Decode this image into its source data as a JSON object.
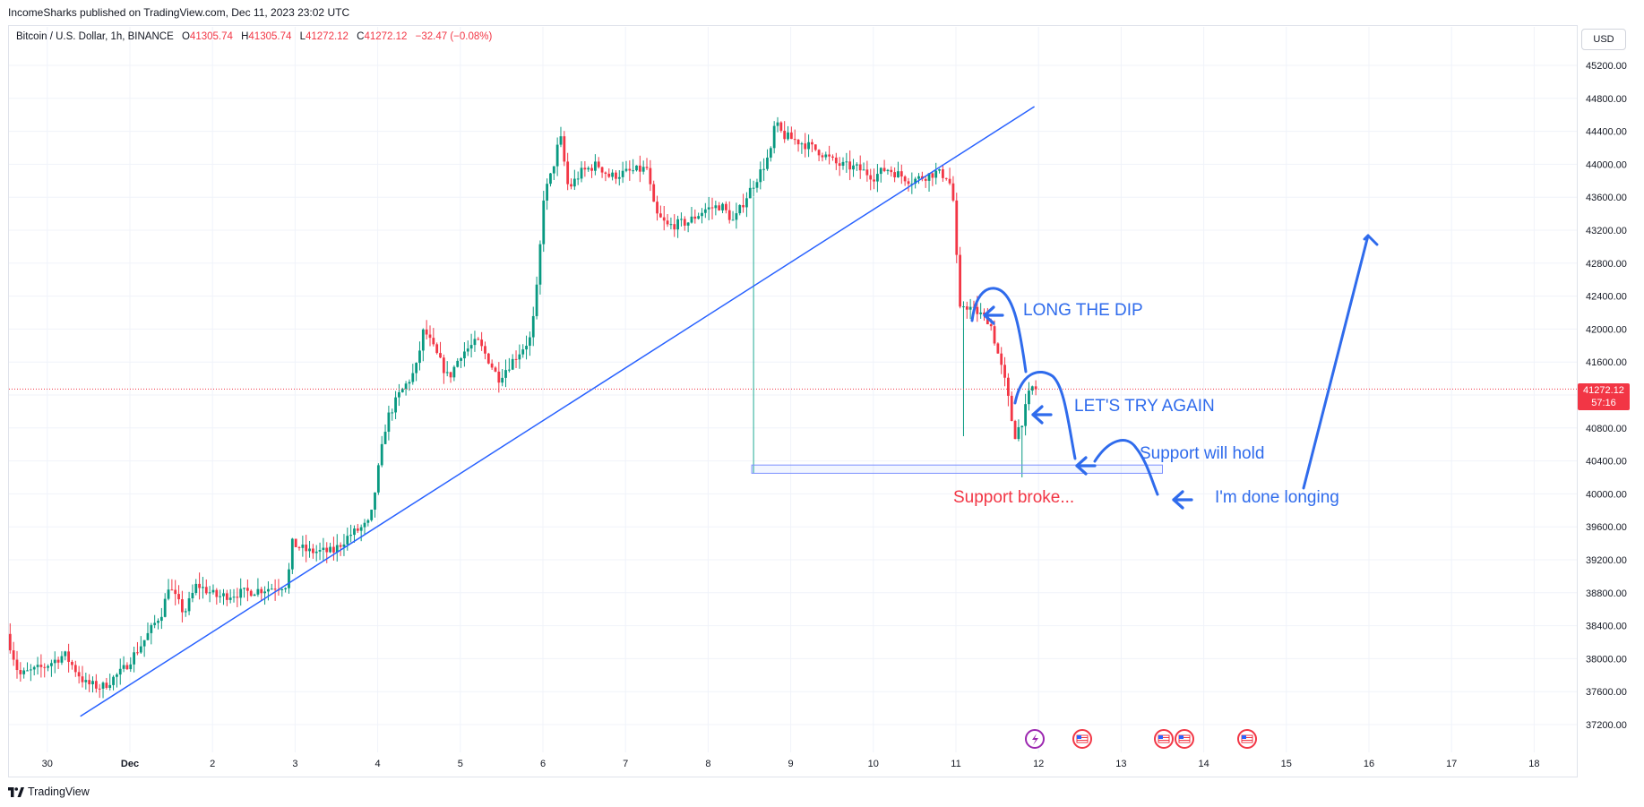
{
  "header": {
    "published": "IncomeSharks published on TradingView.com, Dec 11, 2023 23:02 UTC"
  },
  "legend": {
    "symbol": "Bitcoin / U.S. Dollar, 1h, BINANCE",
    "o_label": "O",
    "o_value": "41305.74",
    "h_label": "H",
    "h_value": "41305.74",
    "l_label": "L",
    "l_value": "41272.12",
    "c_label": "C",
    "c_value": "41272.12",
    "change": "−32.47 (−0.08%)"
  },
  "currency": "USD",
  "last_price": {
    "value": "41272.12",
    "countdown": "57:16"
  },
  "footer": {
    "brand": "TradingView"
  },
  "annotations": {
    "long_dip": "LONG THE DIP",
    "try_again": "LET'S TRY AGAIN",
    "support_hold": "Support will hold",
    "done_longing": "I'm done longing",
    "support_broke": "Support broke..."
  },
  "colors": {
    "up": "#089981",
    "down": "#f23645",
    "drawing": "#2962ff",
    "annotation_blue": "#2f6bec",
    "annotation_red": "#f23645",
    "grid": "#f0f3fa"
  },
  "chart_data": {
    "type": "candlestick",
    "interval": "1h",
    "x_tick_labels": [
      "30",
      "Dec",
      "2",
      "3",
      "4",
      "5",
      "6",
      "7",
      "8",
      "9",
      "10",
      "11",
      "12",
      "13",
      "14",
      "15",
      "16",
      "17",
      "18"
    ],
    "y_tick_labels": [
      "45200.00",
      "44800.00",
      "44400.00",
      "44000.00",
      "43600.00",
      "43200.00",
      "42800.00",
      "42400.00",
      "42000.00",
      "41600.00",
      "41200.00",
      "40800.00",
      "40400.00",
      "40000.00",
      "39600.00",
      "39200.00",
      "38800.00",
      "38400.00",
      "38000.00",
      "37600.00",
      "37200.00"
    ],
    "ylim": [
      36960,
      45500
    ],
    "xlim_days": [
      29.55,
      18.5
    ],
    "grid": true,
    "candles_approx_daily": [
      {
        "date": "Nov 30",
        "low": 37500,
        "high": 38300
      },
      {
        "date": "Dec 1",
        "low": 37600,
        "high": 38900
      },
      {
        "date": "Dec 2",
        "low": 38600,
        "high": 39000
      },
      {
        "date": "Dec 3",
        "low": 38700,
        "high": 39800
      },
      {
        "date": "Dec 4",
        "low": 39300,
        "high": 42200
      },
      {
        "date": "Dec 5",
        "low": 41100,
        "high": 42300
      },
      {
        "date": "Dec 6",
        "low": 43500,
        "high": 44500
      },
      {
        "date": "Dec 7",
        "low": 42900,
        "high": 44100
      },
      {
        "date": "Dec 8",
        "low": 43100,
        "high": 44200
      },
      {
        "date": "Dec 9",
        "low": 43900,
        "high": 44750
      },
      {
        "date": "Dec 10",
        "low": 43600,
        "high": 44200
      },
      {
        "date": "Dec 11",
        "low": 40200,
        "high": 44100
      }
    ],
    "last_close": 41272.12,
    "support_zone": [
      40250,
      40350
    ],
    "trendline": {
      "from": [
        "Nov 30 12:00",
        37300
      ],
      "to": [
        "Dec 12 05:00",
        44700
      ]
    }
  }
}
